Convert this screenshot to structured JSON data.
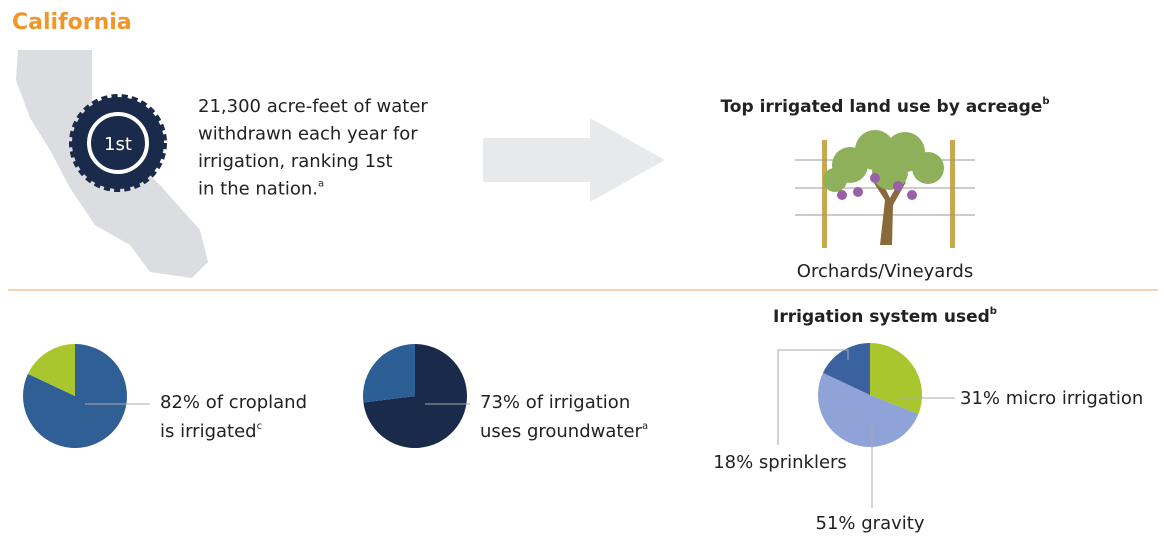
{
  "header": {
    "title": "California"
  },
  "badge": {
    "rank": "1st"
  },
  "withdrawal": {
    "lines": [
      "21,300 acre-feet of water",
      "withdrawn each year for",
      "irrigation, ranking 1st",
      "in the nation."
    ],
    "note": "a"
  },
  "land_use": {
    "title": "Top irrigated land use by acreage",
    "note": "b",
    "label": "Orchards/Vineyards"
  },
  "pies": [
    {
      "segments": [
        {
          "value": 82,
          "color": "#2f5f95"
        },
        {
          "value": 18,
          "color": "#a9c62f"
        }
      ],
      "label_lines": [
        "82% of cropland",
        "is irrigated"
      ],
      "note": "c"
    },
    {
      "segments": [
        {
          "value": 73,
          "color": "#1a2a4a"
        },
        {
          "value": 27,
          "color": "#2c5f96"
        }
      ],
      "label_lines": [
        "73% of irrigation",
        "uses groundwater"
      ],
      "note": "a"
    }
  ],
  "irrigation_system": {
    "title": "Irrigation system used",
    "note": "b",
    "segments": [
      {
        "label": "31% micro irrigation",
        "value": 31,
        "color": "#a9c62f"
      },
      {
        "label": "51% gravity",
        "value": 51,
        "color": "#8fa3d8"
      },
      {
        "label": "18% sprinklers",
        "value": 18,
        "color": "#3a62a0"
      }
    ]
  }
}
